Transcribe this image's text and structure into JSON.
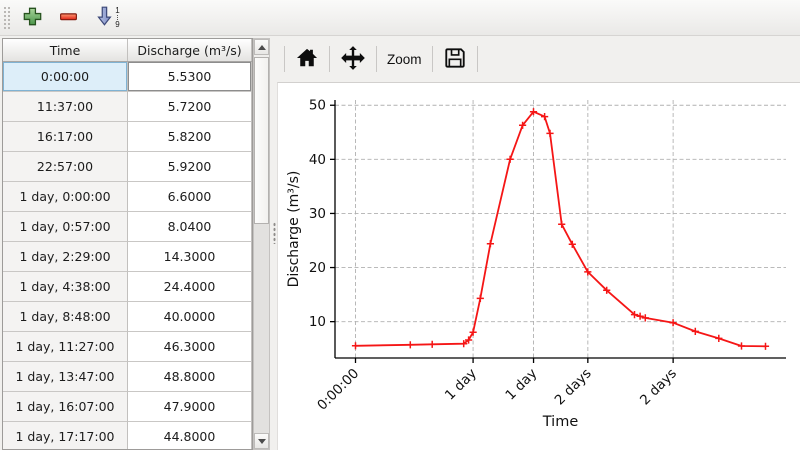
{
  "toolbar": {
    "sort": {
      "top_digit": "1",
      "bottom_digit": "9"
    }
  },
  "table": {
    "headers": [
      "Time",
      "Discharge (m³/s)"
    ],
    "selected_row_index": 0,
    "rows": [
      {
        "time": "0:00:00",
        "discharge": "5.5300"
      },
      {
        "time": "11:37:00",
        "discharge": "5.7200"
      },
      {
        "time": "16:17:00",
        "discharge": "5.8200"
      },
      {
        "time": "22:57:00",
        "discharge": "5.9200"
      },
      {
        "time": "1 day, 0:00:00",
        "discharge": "6.6000"
      },
      {
        "time": "1 day, 0:57:00",
        "discharge": "8.0400"
      },
      {
        "time": "1 day, 2:29:00",
        "discharge": "14.3000"
      },
      {
        "time": "1 day, 4:38:00",
        "discharge": "24.4000"
      },
      {
        "time": "1 day, 8:48:00",
        "discharge": "40.0000"
      },
      {
        "time": "1 day, 11:27:00",
        "discharge": "46.3000"
      },
      {
        "time": "1 day, 13:47:00",
        "discharge": "48.8000"
      },
      {
        "time": "1 day, 16:07:00",
        "discharge": "47.9000"
      },
      {
        "time": "1 day, 17:17:00",
        "discharge": "44.8000"
      }
    ]
  },
  "chart_toolbar": {
    "zoom_label": "Zoom"
  },
  "chart_data": {
    "type": "line",
    "title": "",
    "xlabel": "Time",
    "ylabel": "Discharge (m³/s)",
    "grid": true,
    "grid_style": "dashed",
    "legend": "none",
    "xlim_hours": [
      -4.35,
      91.35
    ],
    "ylim": [
      3.28,
      50.97
    ],
    "y_ticks": [
      10,
      20,
      30,
      40,
      50
    ],
    "x_ticks": [
      {
        "hours": 0,
        "label": "0:00:00"
      },
      {
        "hours": 24.95,
        "label": "1 day"
      },
      {
        "hours": 37.78,
        "label": "1 day"
      },
      {
        "hours": 49.3,
        "label": "2 days"
      },
      {
        "hours": 67.4,
        "label": "2 days"
      }
    ],
    "series": [
      {
        "name": "Discharge",
        "color": "#f51616",
        "marker": "+",
        "x_hours": [
          0,
          11.62,
          16.28,
          22.95,
          24.0,
          24.95,
          26.48,
          28.63,
          32.8,
          35.45,
          37.78,
          40.12,
          41.28,
          43.75,
          46.0,
          49.3,
          53.3,
          59.2,
          60.4,
          61.5,
          67.4,
          72.1,
          77.1,
          81.9,
          87.0
        ],
        "values": [
          5.53,
          5.72,
          5.82,
          5.92,
          6.6,
          8.04,
          14.3,
          24.4,
          40.0,
          46.3,
          48.8,
          47.9,
          44.8,
          28.0,
          24.3,
          19.2,
          15.8,
          11.3,
          11.0,
          10.7,
          9.8,
          8.2,
          6.9,
          5.5,
          5.45
        ]
      }
    ]
  },
  "colors": {
    "selection_bg": "#ddeef9",
    "selection_border": "#7fb2d3",
    "line": "#f51616",
    "grid": "#b1b1b1"
  }
}
